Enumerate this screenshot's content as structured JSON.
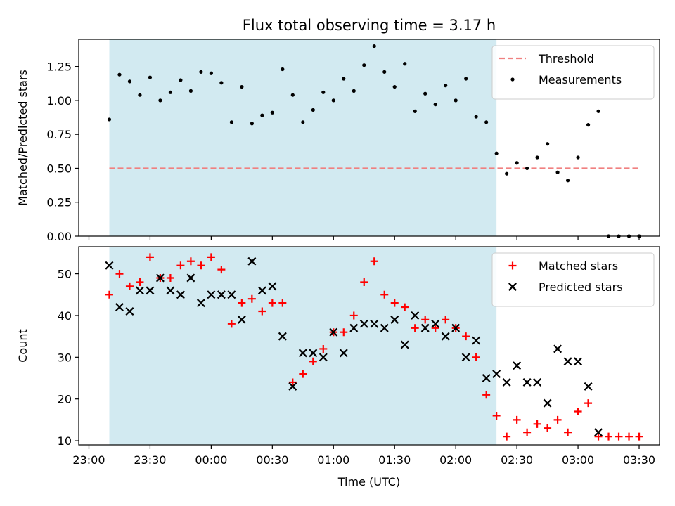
{
  "figure": {
    "title": "Flux total observing time = 3.17 h",
    "xlabel": "Time (UTC)",
    "xticks": [
      {
        "t": 0,
        "label": "23:00"
      },
      {
        "t": 30,
        "label": "23:30"
      },
      {
        "t": 60,
        "label": "00:00"
      },
      {
        "t": 90,
        "label": "00:30"
      },
      {
        "t": 120,
        "label": "01:00"
      },
      {
        "t": 150,
        "label": "01:30"
      },
      {
        "t": 180,
        "label": "02:00"
      },
      {
        "t": 210,
        "label": "02:30"
      },
      {
        "t": 240,
        "label": "03:00"
      },
      {
        "t": 270,
        "label": "03:30"
      }
    ],
    "xlim": [
      -5,
      280
    ],
    "shaded_span": {
      "from": 10,
      "to": 200,
      "color": "#add8e6"
    }
  },
  "chart_data": [
    {
      "type": "scatter",
      "ylabel": "Matched/Predicted stars",
      "ylim": [
        0,
        1.45
      ],
      "yticks": [
        "0.00",
        "0.25",
        "0.50",
        "0.75",
        "1.00",
        "1.25"
      ],
      "legend": {
        "position": "top-right",
        "entries": [
          "Threshold",
          "Measurements"
        ]
      },
      "threshold": {
        "name": "Threshold",
        "y": 0.5,
        "x_range": [
          10,
          270
        ],
        "color": "#f08080"
      },
      "series": [
        {
          "name": "Measurements",
          "marker": "dot",
          "color": "#000000",
          "x": [
            10,
            15,
            20,
            25,
            30,
            35,
            40,
            45,
            50,
            55,
            60,
            65,
            70,
            75,
            80,
            85,
            90,
            95,
            100,
            105,
            110,
            115,
            120,
            125,
            130,
            135,
            140,
            145,
            150,
            155,
            160,
            165,
            170,
            175,
            180,
            185,
            190,
            195,
            200,
            205,
            210,
            215,
            220,
            225,
            230,
            235,
            240,
            245,
            250,
            255,
            260,
            265,
            270
          ],
          "y": [
            0.86,
            1.19,
            1.14,
            1.04,
            1.17,
            1.0,
            1.06,
            1.15,
            1.07,
            1.21,
            1.2,
            1.13,
            0.84,
            1.1,
            0.83,
            0.89,
            0.91,
            1.23,
            1.04,
            0.84,
            0.93,
            1.06,
            1.0,
            1.16,
            1.07,
            1.26,
            1.4,
            1.21,
            1.1,
            1.27,
            0.92,
            1.05,
            0.97,
            1.11,
            1.0,
            1.16,
            0.88,
            0.84,
            0.61,
            0.46,
            0.54,
            0.5,
            0.58,
            0.68,
            0.47,
            0.41,
            0.58,
            0.82,
            0.92,
            0.0,
            0.0,
            0.0,
            0.0
          ]
        }
      ]
    },
    {
      "type": "scatter",
      "ylabel": "Count",
      "ylim": [
        9,
        56.5
      ],
      "yticks": [
        "10",
        "20",
        "30",
        "40",
        "50"
      ],
      "legend": {
        "position": "top-right",
        "entries": [
          "Matched stars",
          "Predicted stars"
        ]
      },
      "series": [
        {
          "name": "Matched stars",
          "marker": "plus",
          "color": "#ff0000",
          "x": [
            10,
            15,
            20,
            25,
            30,
            35,
            40,
            45,
            50,
            55,
            60,
            65,
            70,
            75,
            80,
            85,
            90,
            95,
            100,
            105,
            110,
            115,
            120,
            125,
            130,
            135,
            140,
            145,
            150,
            155,
            160,
            165,
            170,
            175,
            180,
            185,
            190,
            195,
            200,
            205,
            210,
            215,
            220,
            225,
            230,
            235,
            240,
            245,
            250,
            255,
            260,
            265,
            270
          ],
          "y": [
            45,
            50,
            47,
            48,
            54,
            49,
            49,
            52,
            53,
            52,
            54,
            51,
            38,
            43,
            44,
            41,
            43,
            43,
            24,
            26,
            29,
            32,
            36,
            36,
            40,
            48,
            53,
            45,
            43,
            42,
            37,
            39,
            37,
            39,
            37,
            35,
            30,
            21,
            16,
            11,
            15,
            12,
            14,
            13,
            15,
            12,
            17,
            19,
            11,
            11,
            11,
            11,
            11
          ]
        },
        {
          "name": "Predicted stars",
          "marker": "x",
          "color": "#000000",
          "x": [
            10,
            15,
            20,
            25,
            30,
            35,
            40,
            45,
            50,
            55,
            60,
            65,
            70,
            75,
            80,
            85,
            90,
            95,
            100,
            105,
            110,
            115,
            120,
            125,
            130,
            135,
            140,
            145,
            150,
            155,
            160,
            165,
            170,
            175,
            180,
            185,
            190,
            195,
            200,
            205,
            210,
            215,
            220,
            225,
            230,
            235,
            240,
            245,
            250
          ],
          "y": [
            52,
            42,
            41,
            46,
            46,
            49,
            46,
            45,
            49,
            43,
            45,
            45,
            45,
            39,
            53,
            46,
            47,
            35,
            23,
            31,
            31,
            30,
            36,
            31,
            37,
            38,
            38,
            37,
            39,
            33,
            40,
            37,
            38,
            35,
            37,
            30,
            34,
            25,
            26,
            24,
            28,
            24,
            24,
            19,
            32,
            29,
            29,
            23,
            12
          ]
        }
      ]
    }
  ]
}
